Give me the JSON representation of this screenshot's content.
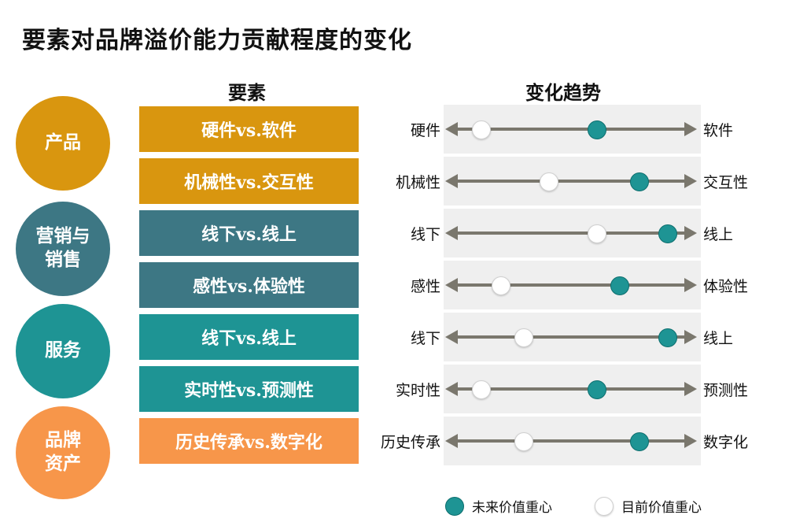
{
  "title": "要素对品牌溢价能力贡献程度的变化",
  "headers": {
    "factors": "要素",
    "trend": "变化趋势"
  },
  "colors": {
    "gold": "#d9960f",
    "slate": "#3d7784",
    "teal": "#1e9494",
    "orange": "#f7964a",
    "arrow": "#7a776d"
  },
  "categories": [
    {
      "label": "产品",
      "color": "#d9960f"
    },
    {
      "label": "营销与\n销售",
      "color": "#3d7784"
    },
    {
      "label": "服务",
      "color": "#1e9494"
    },
    {
      "label": "品牌\n资产",
      "color": "#f7964a"
    }
  ],
  "rows": [
    {
      "factor": "硬件vs.软件",
      "left": "硬件",
      "right": "软件",
      "current": 0.14,
      "future": 0.6,
      "color": "#d9960f"
    },
    {
      "factor": "机械性vs.交互性",
      "left": "机械性",
      "right": "交互性",
      "current": 0.41,
      "future": 0.77,
      "color": "#d9960f"
    },
    {
      "factor": "线下vs.线上",
      "left": "线下",
      "right": "线上",
      "current": 0.6,
      "future": 0.88,
      "color": "#3d7784"
    },
    {
      "factor": "感性vs.体验性",
      "left": "感性",
      "right": "体验性",
      "current": 0.22,
      "future": 0.69,
      "color": "#3d7784"
    },
    {
      "factor": "线下vs.线上",
      "left": "线下",
      "right": "线上",
      "current": 0.31,
      "future": 0.88,
      "color": "#1e9494"
    },
    {
      "factor": "实时性vs.预测性",
      "left": "实时性",
      "right": "预测性",
      "current": 0.14,
      "future": 0.6,
      "color": "#1e9494"
    },
    {
      "factor": "历史传承vs.数字化",
      "left": "历史传承",
      "right": "数字化",
      "current": 0.31,
      "future": 0.77,
      "color": "#f7964a"
    }
  ],
  "legend": {
    "future": "未来价值重心",
    "current": "目前价值重心"
  }
}
